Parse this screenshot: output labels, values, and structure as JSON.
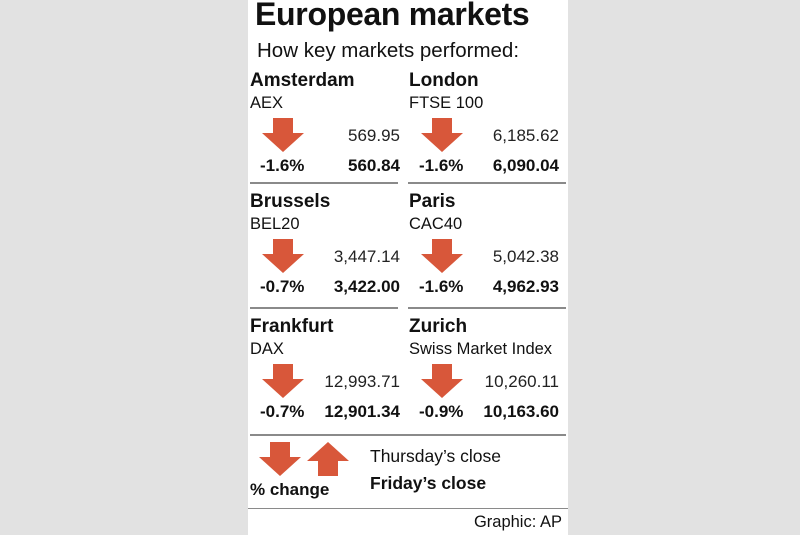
{
  "title": "European markets",
  "subtitle": "How key markets performed:",
  "markets": [
    {
      "city": "Amsterdam",
      "index": "AEX",
      "prev_close": "569.95",
      "change": "-1.6%",
      "close": "560.84",
      "direction": "down"
    },
    {
      "city": "London",
      "index": "FTSE 100",
      "prev_close": "6,185.62",
      "change": "-1.6%",
      "close": "6,090.04",
      "direction": "down"
    },
    {
      "city": "Brussels",
      "index": "BEL20",
      "prev_close": "3,447.14",
      "change": "-0.7%",
      "close": "3,422.00",
      "direction": "down"
    },
    {
      "city": "Paris",
      "index": "CAC40",
      "prev_close": "5,042.38",
      "change": "-1.6%",
      "close": "4,962.93",
      "direction": "down"
    },
    {
      "city": "Frankfurt",
      "index": "DAX",
      "prev_close": "12,993.71",
      "change": "-0.7%",
      "close": "12,901.34",
      "direction": "down"
    },
    {
      "city": "Zurich",
      "index": "Swiss Market Index",
      "prev_close": "10,260.11",
      "change": "-0.9%",
      "close": "10,163.60",
      "direction": "down"
    }
  ],
  "legend": {
    "change_label": "% change",
    "prev_label": "Thursday’s close",
    "close_label": "Friday’s close",
    "down_icon": "down-arrow-icon",
    "up_icon": "up-arrow-icon"
  },
  "credit": "Graphic: AP",
  "colors": {
    "arrow": "#d8573a",
    "background": "#e2e2e2",
    "panel": "#ffffff",
    "divider": "#8a8a8a"
  }
}
